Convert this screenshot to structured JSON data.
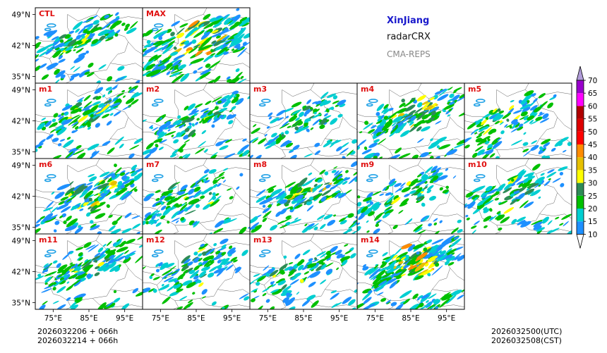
{
  "header": {
    "region": "XinJiang",
    "product": "radarCRX",
    "model": "CMA-REPS"
  },
  "footer": {
    "init_time_line1": "2026032206  +  066h",
    "init_time_line2": "2026032214  +  066h",
    "valid_time_utc": "2026032500(UTC)",
    "valid_time_cst": "2026032508(CST)"
  },
  "colors": {
    "panel_label": "#e01010",
    "border": "#000000",
    "boundary": "#606060"
  },
  "chart_data": {
    "type": "heatmap",
    "description_field": "composite radar reflectivity (dBZ)",
    "panels": [
      {
        "label": "CTL",
        "row": 0,
        "col": 0,
        "intensity": 0.55,
        "cx": 0.45,
        "cy": 0.4
      },
      {
        "label": "MAX",
        "row": 0,
        "col": 1,
        "intensity": 1.0,
        "cx": 0.5,
        "cy": 0.45
      },
      {
        "label": "m1",
        "row": 1,
        "col": 0,
        "intensity": 0.55,
        "cx": 0.5,
        "cy": 0.4
      },
      {
        "label": "m2",
        "row": 1,
        "col": 1,
        "intensity": 0.5,
        "cx": 0.5,
        "cy": 0.45
      },
      {
        "label": "m3",
        "row": 1,
        "col": 2,
        "intensity": 0.4,
        "cx": 0.45,
        "cy": 0.5
      },
      {
        "label": "m4",
        "row": 1,
        "col": 3,
        "intensity": 0.65,
        "cx": 0.55,
        "cy": 0.4
      },
      {
        "label": "m5",
        "row": 1,
        "col": 4,
        "intensity": 0.5,
        "cx": 0.4,
        "cy": 0.5
      },
      {
        "label": "m6",
        "row": 2,
        "col": 0,
        "intensity": 0.65,
        "cx": 0.55,
        "cy": 0.45
      },
      {
        "label": "m7",
        "row": 2,
        "col": 1,
        "intensity": 0.45,
        "cx": 0.45,
        "cy": 0.5
      },
      {
        "label": "m8",
        "row": 2,
        "col": 2,
        "intensity": 0.65,
        "cx": 0.55,
        "cy": 0.45
      },
      {
        "label": "m9",
        "row": 2,
        "col": 3,
        "intensity": 0.45,
        "cx": 0.45,
        "cy": 0.45
      },
      {
        "label": "m10",
        "row": 2,
        "col": 4,
        "intensity": 0.55,
        "cx": 0.45,
        "cy": 0.45
      },
      {
        "label": "m11",
        "row": 3,
        "col": 0,
        "intensity": 0.6,
        "cx": 0.5,
        "cy": 0.4
      },
      {
        "label": "m12",
        "row": 3,
        "col": 1,
        "intensity": 0.45,
        "cx": 0.5,
        "cy": 0.45
      },
      {
        "label": "m13",
        "row": 3,
        "col": 2,
        "intensity": 0.45,
        "cx": 0.45,
        "cy": 0.5
      },
      {
        "label": "m14",
        "row": 3,
        "col": 3,
        "intensity": 0.9,
        "cx": 0.5,
        "cy": 0.4
      }
    ],
    "x_ticks": [
      "75°E",
      "85°E",
      "95°E"
    ],
    "x_tick_values": [
      75,
      85,
      95
    ],
    "y_ticks": [
      "49°N",
      "42°N",
      "35°N"
    ],
    "y_tick_values": [
      49,
      42,
      35
    ],
    "xlim": [
      70,
      100
    ],
    "ylim": [
      33.5,
      50.5
    ],
    "colorbar": {
      "levels": [
        "10",
        "15",
        "20",
        "25",
        "30",
        "35",
        "40",
        "45",
        "50",
        "55",
        "60",
        "65",
        "70"
      ],
      "colors": [
        "#1e90ff",
        "#00ced1",
        "#00c000",
        "#2e8b57",
        "#ffff00",
        "#e6c000",
        "#ff8c00",
        "#ff0000",
        "#dd0000",
        "#b00000",
        "#ff00ff",
        "#9900cc",
        "#b19cd9"
      ],
      "under_color": "#ffffff",
      "over_color": "#b19cd9",
      "extend": "both"
    }
  }
}
